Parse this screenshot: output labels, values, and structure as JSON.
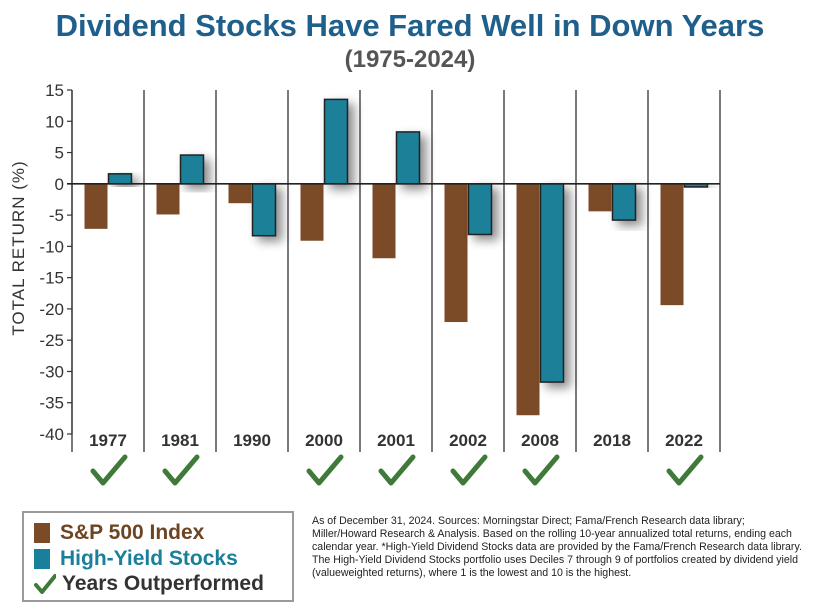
{
  "chart_data": {
    "type": "bar",
    "title": "Dividend Stocks Have Fared Well in Down Years",
    "subtitle": "(1975-2024)",
    "ylabel": "TOTAL RETURN (%)",
    "xlabel": "",
    "ylim": [
      -40,
      15
    ],
    "yticks": [
      15,
      10,
      5,
      0,
      -5,
      -10,
      -15,
      -20,
      -25,
      -30,
      -35,
      -40
    ],
    "categories": [
      "1977",
      "1981",
      "1990",
      "2000",
      "2001",
      "2002",
      "2008",
      "2018",
      "2022"
    ],
    "series": [
      {
        "name": "S&P 500 Index",
        "color": "#7b4a26",
        "values": [
          -7.2,
          -4.9,
          -3.1,
          -9.1,
          -11.9,
          -22.1,
          -37.0,
          -4.4,
          -19.4
        ]
      },
      {
        "name": "High-Yield Stocks",
        "color": "#1a8099",
        "values": [
          1.6,
          4.6,
          -8.3,
          13.5,
          8.3,
          -8.1,
          -31.7,
          -5.8,
          -0.5
        ]
      }
    ],
    "outperformed": [
      true,
      true,
      false,
      true,
      true,
      true,
      true,
      false,
      true
    ]
  },
  "legend": {
    "sp500_label": "S&P 500 Index",
    "hy_label": "High-Yield Stocks",
    "years_label": "Years Outperformed",
    "check_color": "#3f7a3a"
  },
  "footnote": "As of December 31, 2024. Sources: Morningstar Direct; Fama/French Research data library; Miller/Howard Research & Analysis. Based on the rolling 10-year annualized total returns, ending each calendar year. *High-Yield Dividend Stocks data are provided by the Fama/French Research data library. The High-Yield Dividend Stocks portfolio uses Deciles 7 through 9 of portfolios created by dividend yield (valueweighted returns), where 1 is the lowest and 10 is the highest."
}
